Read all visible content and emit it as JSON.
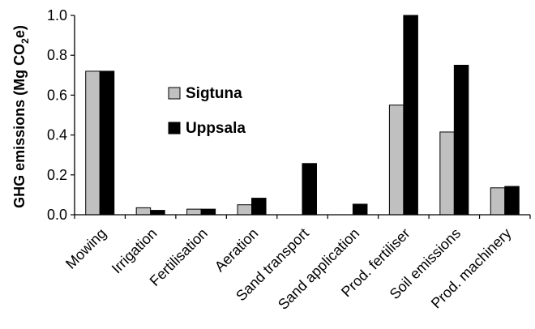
{
  "colors": {
    "sigtuna": "#c0c0c0",
    "uppsala": "#000000",
    "axis": "#000000",
    "background": "#ffffff"
  },
  "chart_data": {
    "type": "bar",
    "title": "",
    "xlabel": "",
    "ylabel": "GHG emissions (Mg CO",
    "ylabel_sub": "2",
    "ylabel_tail": "e)",
    "ylim": [
      0,
      1.0
    ],
    "yticks": [
      0.0,
      0.2,
      0.4,
      0.6,
      0.8,
      1.0
    ],
    "ytick_labels": [
      "0.0",
      "0.2",
      "0.4",
      "0.6",
      "0.8",
      "1.0"
    ],
    "grid": false,
    "legend_position": "upper-left-inside",
    "categories": [
      "Mowing",
      "Irrigation",
      "Fertilisation",
      "Aeration",
      "Sand transport",
      "Sand application",
      "Prod. fertiliser",
      "Soil emissions",
      "Prod. machinery"
    ],
    "series": [
      {
        "name": "Sigtuna",
        "color": "#c0c0c0",
        "values": [
          0.72,
          0.035,
          0.028,
          0.05,
          0.0,
          0.0,
          0.55,
          0.415,
          0.135
        ]
      },
      {
        "name": "Uppsala",
        "color": "#000000",
        "values": [
          0.72,
          0.022,
          0.028,
          0.083,
          0.257,
          0.053,
          1.0,
          0.75,
          0.142
        ]
      }
    ]
  }
}
